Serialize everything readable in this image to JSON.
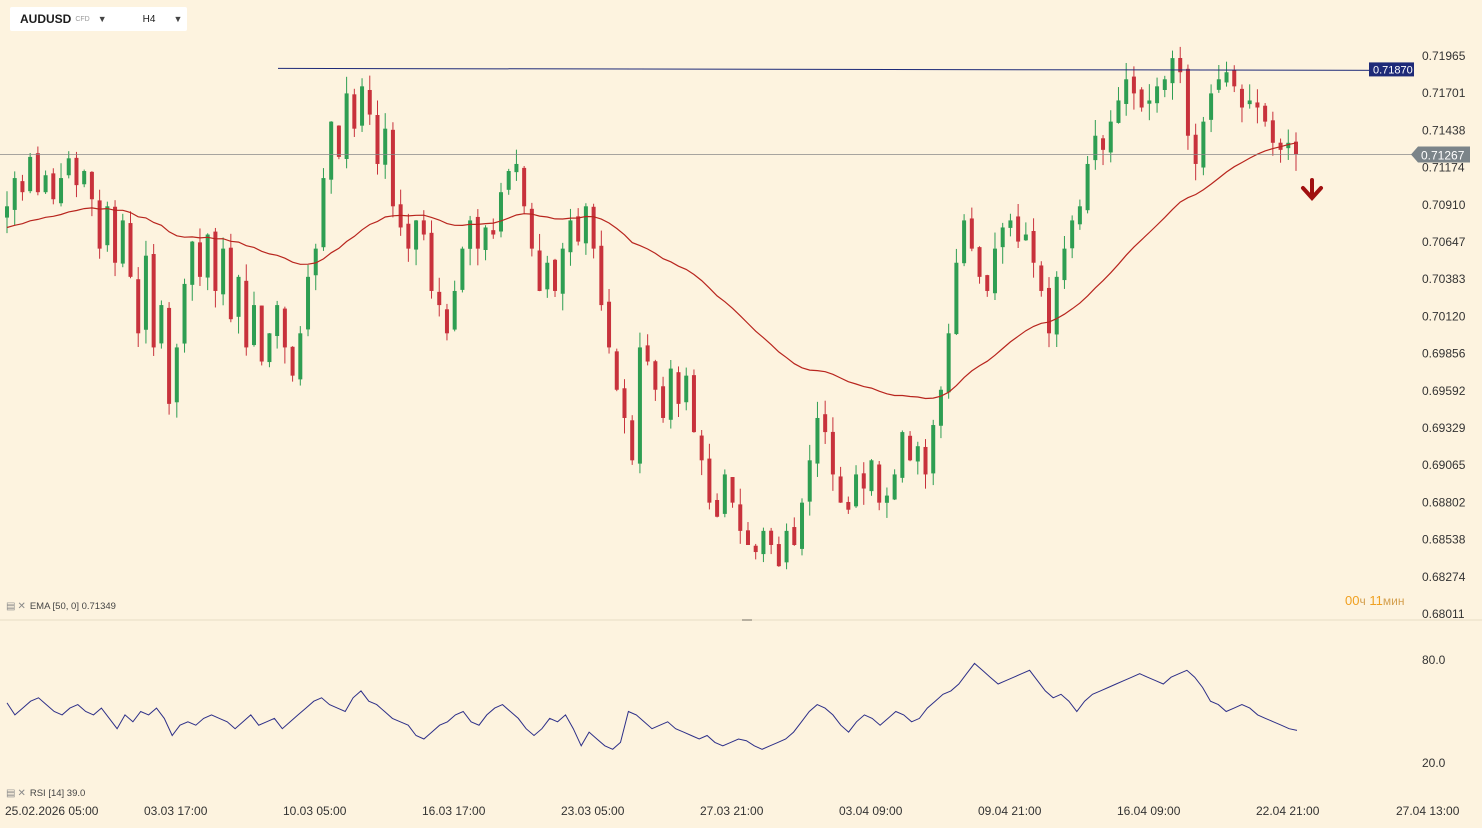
{
  "toolbar": {
    "symbol": "AUDUSD",
    "symbol_type": "CFD",
    "timeframe": "H4"
  },
  "indicators": {
    "ema_label": "EMA [50, 0] 0.71349",
    "rsi_label": "RSI [14] 39.0"
  },
  "timer": {
    "hours": "00",
    "hours_unit": "ч",
    "minutes": "11",
    "minutes_unit": "мин"
  },
  "colors": {
    "background": "#fdf3df",
    "bull": "#2e9e52",
    "bear": "#c8323c",
    "ema": "#b8251e",
    "rsi": "#2d2f88",
    "hline": "#1e2a78",
    "price_line": "#8a8a8a",
    "arrow": "#a01010"
  },
  "chart_data": {
    "type": "candlestick",
    "symbol": "AUDUSD",
    "timeframe": "H4",
    "price_axis": [
      "0.71965",
      "0.71701",
      "0.71438",
      "0.71174",
      "0.70910",
      "0.70647",
      "0.70383",
      "0.70120",
      "0.69856",
      "0.69592",
      "0.69329",
      "0.69065",
      "0.68802",
      "0.68538",
      "0.68274",
      "0.68011"
    ],
    "time_axis": [
      "25.02.2026 05:00",
      "03.03 17:00",
      "10.03 05:00",
      "16.03 17:00",
      "23.03 05:00",
      "27.03 21:00",
      "03.04 09:00",
      "09.04 21:00",
      "16.04 09:00",
      "22.04 21:00",
      "27.04 13:00"
    ],
    "ylim": [
      0.68011,
      0.7206
    ],
    "current_price": "0.71267",
    "horizontal_line": "0.71870",
    "signal": "sell",
    "close_path": [
      0.709,
      0.711,
      0.71,
      0.7125,
      0.71,
      0.7112,
      0.7095,
      0.711,
      0.7124,
      0.7105,
      0.7115,
      0.7095,
      0.706,
      0.709,
      0.705,
      0.708,
      0.704,
      0.7,
      0.7055,
      0.699,
      0.702,
      0.695,
      0.699,
      0.7035,
      0.7065,
      0.704,
      0.707,
      0.703,
      0.706,
      0.701,
      0.704,
      0.699,
      0.702,
      0.698,
      0.7,
      0.702,
      0.699,
      0.697,
      0.7,
      0.704,
      0.706,
      0.711,
      0.715,
      0.7125,
      0.717,
      0.7145,
      0.7175,
      0.7155,
      0.712,
      0.7145,
      0.709,
      0.7075,
      0.706,
      0.708,
      0.707,
      0.703,
      0.702,
      0.7,
      0.703,
      0.706,
      0.708,
      0.706,
      0.7075,
      0.707,
      0.71,
      0.7115,
      0.712,
      0.709,
      0.706,
      0.703,
      0.705,
      0.703,
      0.706,
      0.708,
      0.7065,
      0.709,
      0.706,
      0.702,
      0.699,
      0.696,
      0.694,
      0.691,
      0.699,
      0.698,
      0.696,
      0.694,
      0.6975,
      0.695,
      0.697,
      0.693,
      0.691,
      0.688,
      0.687,
      0.69,
      0.688,
      0.686,
      0.685,
      0.6845,
      0.686,
      0.685,
      0.6835,
      0.686,
      0.685,
      0.688,
      0.691,
      0.694,
      0.693,
      0.69,
      0.688,
      0.6875,
      0.69,
      0.689,
      0.691,
      0.688,
      0.6885,
      0.69,
      0.693,
      0.691,
      0.692,
      0.69,
      0.6935,
      0.696,
      0.7,
      0.705,
      0.708,
      0.706,
      0.704,
      0.703,
      0.706,
      0.7075,
      0.708,
      0.7065,
      0.707,
      0.705,
      0.703,
      0.7,
      0.704,
      0.706,
      0.708,
      0.709,
      0.712,
      0.714,
      0.713,
      0.715,
      0.7165,
      0.718,
      0.717,
      0.716,
      0.7165,
      0.7175,
      0.718,
      0.7195,
      0.7185,
      0.714,
      0.712,
      0.715,
      0.717,
      0.718,
      0.7185,
      0.7175,
      0.716,
      0.7165,
      0.716,
      0.715,
      0.7135,
      0.713,
      0.7135,
      0.7127
    ],
    "ema_period": 50,
    "ema_last": 0.71349,
    "rsi_period": 14,
    "rsi_last": 39.0,
    "rsi_axis": [
      "80.0",
      "20.0"
    ],
    "rsi_path": [
      55,
      48,
      52,
      56,
      58,
      54,
      50,
      48,
      52,
      54,
      50,
      48,
      52,
      46,
      40,
      48,
      44,
      50,
      48,
      52,
      46,
      36,
      42,
      44,
      42,
      46,
      48,
      46,
      44,
      40,
      44,
      48,
      42,
      44,
      46,
      40,
      44,
      48,
      52,
      56,
      58,
      54,
      52,
      50,
      58,
      62,
      56,
      54,
      50,
      46,
      44,
      42,
      36,
      34,
      38,
      42,
      44,
      48,
      50,
      44,
      42,
      48,
      52,
      54,
      50,
      46,
      40,
      36,
      40,
      46,
      44,
      48,
      40,
      30,
      38,
      34,
      30,
      28,
      32,
      50,
      48,
      44,
      40,
      42,
      44,
      40,
      38,
      36,
      34,
      36,
      32,
      30,
      32,
      34,
      33,
      30,
      28,
      30,
      32,
      34,
      38,
      44,
      50,
      54,
      52,
      48,
      42,
      38,
      44,
      48,
      46,
      42,
      46,
      50,
      48,
      44,
      46,
      52,
      56,
      60,
      62,
      66,
      72,
      78,
      74,
      70,
      66,
      68,
      70,
      72,
      74,
      68,
      62,
      58,
      60,
      56,
      50,
      56,
      60,
      62,
      64,
      66,
      68,
      70,
      72,
      70,
      68,
      66,
      70,
      72,
      74,
      70,
      64,
      56,
      54,
      50,
      52,
      54,
      52,
      48,
      46,
      44,
      42,
      40,
      39
    ]
  }
}
